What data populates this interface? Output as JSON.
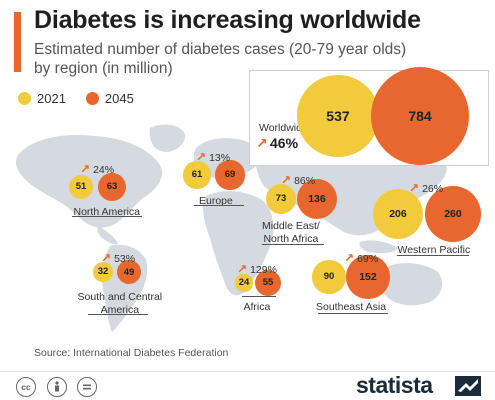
{
  "title": "Diabetes is increasing worldwide",
  "subtitle": "Estimated number of diabetes cases (20-79 year olds) by region (in million)",
  "legend": [
    "2021",
    "2045"
  ],
  "colors": {
    "y2021": "#f2cb3d",
    "y2045": "#e8672f",
    "accent": "#e8672f",
    "map": "#d5d9e0",
    "brand": "#1a2b3c"
  },
  "chart_data": {
    "type": "bubble",
    "title": "Diabetes is increasing worldwide",
    "subtitle": "Estimated number of diabetes cases (20-79 year olds) by region (in million)",
    "series": [
      {
        "name": "2021",
        "values": [
          537,
          51,
          61,
          73,
          206,
          32,
          24,
          90
        ]
      },
      {
        "name": "2045",
        "values": [
          784,
          63,
          69,
          136,
          260,
          49,
          55,
          152
        ]
      }
    ],
    "categories": [
      "Worldwide",
      "North America",
      "Europe",
      "Middle East/ North Africa",
      "Western Pacific",
      "South and Central America",
      "Africa",
      "Southeast Asia"
    ],
    "growth": [
      "46%",
      "24%",
      "13%",
      "86%",
      "26%",
      "53%",
      "129%",
      "69%"
    ]
  },
  "source": "Source: International Diabetes Federation",
  "footer": {
    "brand": "statista",
    "license_icons": [
      "cc-icon",
      "by-icon",
      "nd-icon"
    ]
  }
}
